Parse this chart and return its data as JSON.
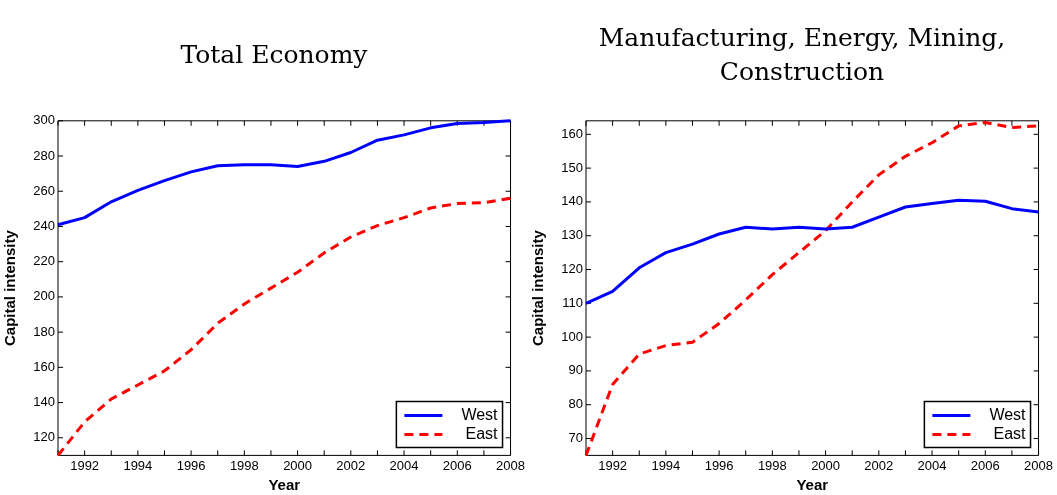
{
  "chart_data": [
    {
      "type": "line",
      "title": "Total Economy",
      "xlabel": "Year",
      "ylabel": "Capital intensity",
      "x": [
        1991,
        1992,
        1993,
        1994,
        1995,
        1996,
        1997,
        1998,
        1999,
        2000,
        2001,
        2002,
        2003,
        2004,
        2005,
        2006,
        2007,
        2008
      ],
      "series": [
        {
          "name": "West",
          "color": "#0000ff",
          "line_style": "solid",
          "values": [
            241,
            245,
            254,
            260.5,
            266,
            271,
            274.5,
            275,
            275,
            274,
            277,
            282,
            289,
            292,
            296,
            298.5,
            299,
            300
          ]
        },
        {
          "name": "East",
          "color": "#ff0000",
          "line_style": "dashed",
          "values": [
            110,
            129,
            142,
            150,
            158,
            170,
            185,
            196,
            205,
            214,
            225,
            234,
            240.5,
            245,
            250.5,
            253,
            253.5,
            256
          ]
        }
      ],
      "xlim": [
        1991,
        2008
      ],
      "ylim": [
        110,
        300
      ],
      "xticks": [
        {
          "value": 1991,
          "label": null
        },
        1992,
        {
          "value": 1993,
          "label": null
        },
        1994,
        {
          "value": 1995,
          "label": null
        },
        1996,
        {
          "value": 1997,
          "label": null
        },
        1998,
        {
          "value": 1999,
          "label": null
        },
        2000,
        {
          "value": 2001,
          "label": null
        },
        2002,
        {
          "value": 2003,
          "label": null
        },
        2004,
        {
          "value": 2005,
          "label": null
        },
        2006,
        {
          "value": 2007,
          "label": null
        },
        2008
      ],
      "yticks": [
        120,
        140,
        160,
        180,
        200,
        220,
        240,
        260,
        280,
        300
      ],
      "grid": false,
      "legend": "bottom right",
      "marker": "none"
    },
    {
      "type": "line",
      "title": "Manufacturing, Energy, Mining, Construction",
      "xlabel": "Year",
      "ylabel": "Capital intensity",
      "x": [
        1991,
        1992,
        1993,
        1994,
        1995,
        1996,
        1997,
        1998,
        1999,
        2000,
        2001,
        2002,
        2003,
        2004,
        2005,
        2006,
        2007,
        2008
      ],
      "series": [
        {
          "name": "West",
          "color": "#0000ff",
          "line_style": "solid",
          "values": [
            110,
            113.5,
            120.5,
            125,
            127.5,
            130.5,
            132.5,
            132,
            132.5,
            132,
            132.5,
            135.5,
            138.5,
            139.5,
            140.5,
            140.2,
            138,
            137
          ]
        },
        {
          "name": "East",
          "color": "#ff0000",
          "line_style": "dashed",
          "values": [
            65,
            86,
            95,
            97.5,
            98.5,
            104,
            111,
            118.5,
            125,
            131.5,
            140,
            148,
            153.5,
            157.5,
            162.5,
            163.5,
            162,
            162.5
          ]
        }
      ],
      "xlim": [
        1991,
        2008
      ],
      "ylim": [
        65,
        164
      ],
      "xticks": [
        {
          "value": 1991,
          "label": null
        },
        1992,
        {
          "value": 1993,
          "label": null
        },
        1994,
        {
          "value": 1995,
          "label": null
        },
        1996,
        {
          "value": 1997,
          "label": null
        },
        1998,
        {
          "value": 1999,
          "label": null
        },
        2000,
        {
          "value": 2001,
          "label": null
        },
        2002,
        {
          "value": 2003,
          "label": null
        },
        2004,
        {
          "value": 2005,
          "label": null
        },
        2006,
        {
          "value": 2007,
          "label": null
        },
        2008
      ],
      "yticks": [
        70,
        80,
        90,
        100,
        110,
        120,
        130,
        140,
        150,
        160
      ],
      "grid": false,
      "legend": "bottom right",
      "marker": "none"
    }
  ]
}
